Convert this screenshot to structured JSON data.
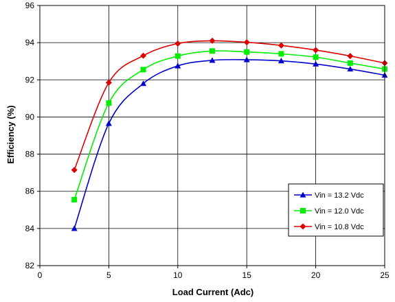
{
  "chart_data": {
    "type": "line",
    "xlabel": "Load Current (Adc)",
    "ylabel": "Efficiency (%)",
    "xlim": [
      0,
      25
    ],
    "ylim": [
      82,
      96
    ],
    "xticks": [
      0,
      5,
      10,
      15,
      20,
      25
    ],
    "yticks": [
      82,
      84,
      86,
      88,
      90,
      92,
      94,
      96
    ],
    "grid": true,
    "legend_position": "bottom-right",
    "x": [
      2.5,
      5,
      7.5,
      10,
      12.5,
      15,
      17.5,
      20,
      22.5,
      25
    ],
    "series": [
      {
        "name": "Vin = 13.2 Vdc",
        "color": "#0000cc",
        "marker": "triangle",
        "values": [
          84.0,
          89.65,
          91.8,
          92.75,
          93.05,
          93.08,
          93.02,
          92.85,
          92.58,
          92.25
        ]
      },
      {
        "name": "Vin = 12.0 Vdc",
        "color": "#00ee00",
        "marker": "square",
        "values": [
          85.55,
          90.75,
          92.55,
          93.28,
          93.55,
          93.5,
          93.4,
          93.22,
          92.9,
          92.58
        ]
      },
      {
        "name": "Vin = 10.8 Vdc",
        "color": "#dd0000",
        "marker": "diamond",
        "values": [
          87.15,
          91.85,
          93.3,
          93.95,
          94.1,
          94.02,
          93.85,
          93.6,
          93.28,
          92.9
        ]
      }
    ]
  }
}
